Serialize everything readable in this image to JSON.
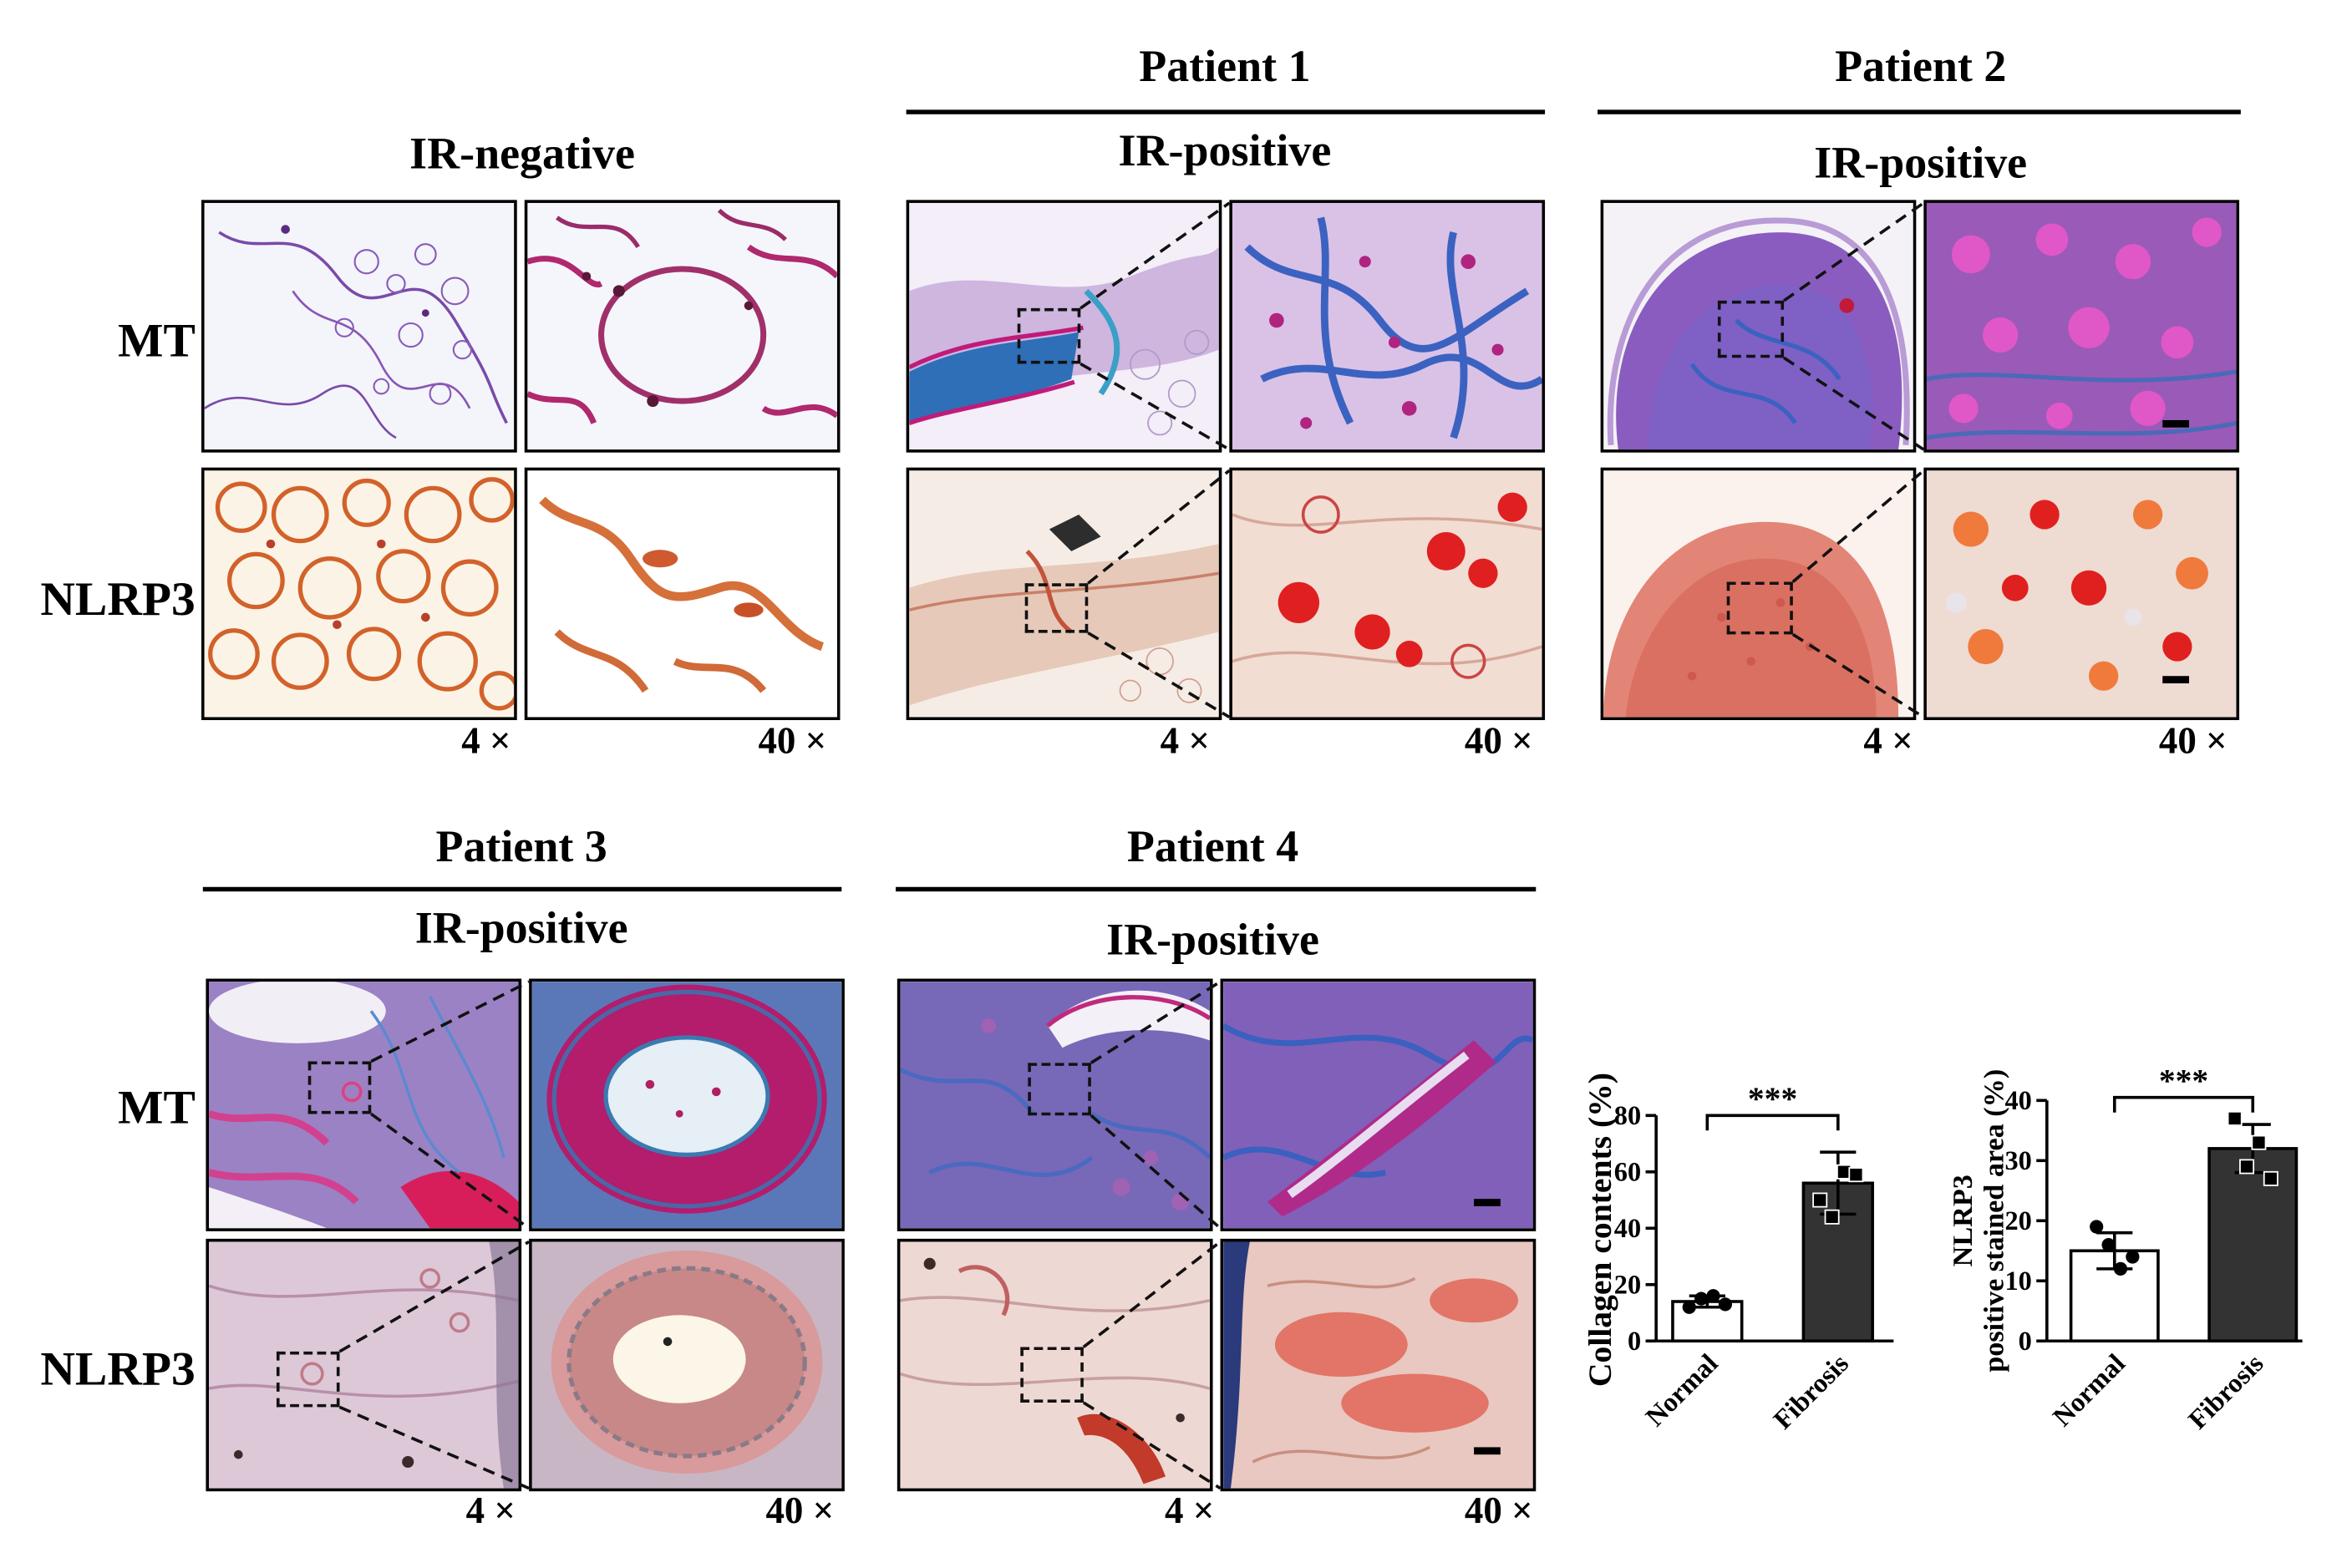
{
  "headers": {
    "ir_negative": "IR-negative",
    "patient1": "Patient 1",
    "patient2": "Patient 2",
    "patient3": "Patient 3",
    "patient4": "Patient 4",
    "ir_positive": "IR-positive"
  },
  "row_labels": {
    "mt": "MT",
    "nlrp3": "NLRP3"
  },
  "magnifications": {
    "low": "4 ×",
    "high": "40 ×"
  },
  "colors": {
    "mt_background": "#f4f6fb",
    "mt_tissue_purple": "#8a4fb0",
    "mt_collagen_blue": "#3a78c0",
    "mt_magenta": "#c2187a",
    "nlrp3_background": "#f4e6dc",
    "nlrp3_stain": "#d04a2e",
    "bar_normal": "#ffffff",
    "bar_fibrosis": "#333333"
  },
  "chart_data": [
    {
      "type": "bar",
      "categories": [
        "Normal",
        "Fibrosis"
      ],
      "values": [
        14,
        56
      ],
      "error": [
        2,
        11
      ],
      "points": [
        [
          12,
          15,
          16,
          13
        ],
        [
          50,
          44,
          60,
          59
        ]
      ],
      "ylabel": "Collagen contents (%)",
      "ylim": [
        0,
        80
      ],
      "yticks": [
        0,
        20,
        40,
        60,
        80
      ],
      "significance": "***"
    },
    {
      "type": "bar",
      "categories": [
        "Normal",
        "Fibrosis"
      ],
      "values": [
        15,
        32
      ],
      "error": [
        3,
        4
      ],
      "points": [
        [
          19,
          16,
          12,
          14
        ],
        [
          37,
          29,
          33,
          27
        ]
      ],
      "ylabel_line1": "NLRP3",
      "ylabel_line2": "positive stained area (%)",
      "ylim": [
        0,
        40
      ],
      "yticks": [
        0,
        10,
        20,
        30,
        40
      ],
      "significance": "***"
    }
  ]
}
